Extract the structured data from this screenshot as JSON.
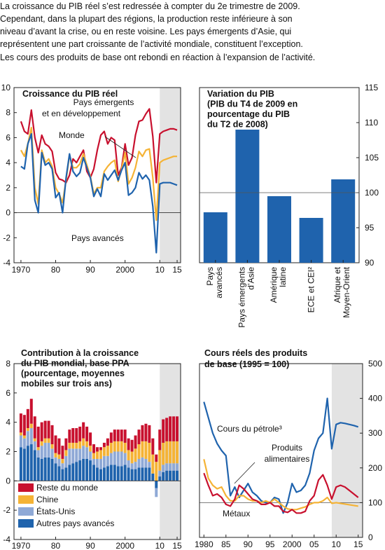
{
  "intro": [
    "La croissance du PIB réel s’est redressée à compter du 2e trimestre de 2009.",
    "Cependant, dans la plupart des régions, la production reste inférieure à son",
    "niveau d’avant la crise, ou en reste voisine. Les pays émergents d’Asie, qui",
    "représentent une part croissante de l’activité mondiale, constituent l’exception.",
    "Les cours des produits de base ont rebondi en réaction à l’expansion de l’activité."
  ],
  "colors": {
    "red": "#c8102e",
    "yellow": "#f5b335",
    "lightblue": "#8fa9d6",
    "blue": "#1f63ad",
    "shade": "#e3e3e3"
  },
  "chart_data": [
    {
      "type": "line",
      "title": "Croissance du PIB réel",
      "ylim": [
        -4,
        10
      ],
      "yticks": [
        "-4",
        "-2",
        "0",
        "2",
        "4",
        "6",
        "8",
        "10"
      ],
      "xlim": [
        1968,
        2016
      ],
      "xtick_labels": [
        "1970",
        "80",
        "90",
        "2000",
        "10",
        "15"
      ],
      "xtick_values": [
        1970,
        1980,
        1990,
        2000,
        2010,
        2015
      ],
      "shaded_from": 2010,
      "annotations": [
        "Pays émergents",
        "et en développement",
        "Monde",
        "Pays avancés"
      ],
      "x": [
        1970,
        1971,
        1972,
        1973,
        1974,
        1975,
        1976,
        1977,
        1978,
        1979,
        1980,
        1981,
        1982,
        1983,
        1984,
        1985,
        1986,
        1987,
        1988,
        1989,
        1990,
        1991,
        1992,
        1993,
        1994,
        1995,
        1996,
        1997,
        1998,
        1999,
        2000,
        2001,
        2002,
        2003,
        2004,
        2005,
        2006,
        2007,
        2008,
        2009,
        2010,
        2011,
        2012,
        2013,
        2014,
        2015
      ],
      "series": [
        {
          "name": "Pays émergents et en développement",
          "color": "red",
          "values": [
            7.3,
            6.5,
            6.3,
            8.2,
            6.0,
            4.8,
            6.2,
            5.5,
            5.3,
            4.9,
            3.2,
            2.7,
            2.6,
            2.4,
            3.0,
            4.3,
            4.0,
            4.5,
            5.0,
            3.3,
            2.8,
            3.5,
            5.0,
            6.2,
            6.5,
            5.5,
            6.0,
            5.8,
            3.0,
            3.6,
            5.5,
            3.8,
            4.4,
            6.2,
            7.3,
            7.4,
            7.9,
            8.3,
            6.1,
            2.4,
            6.3,
            6.5,
            6.6,
            6.7,
            6.7,
            6.6
          ]
        },
        {
          "name": "Monde",
          "color": "yellow",
          "values": [
            5.0,
            4.5,
            5.5,
            6.8,
            2.0,
            0.7,
            5.0,
            4.0,
            4.3,
            3.7,
            2.0,
            1.5,
            0.8,
            2.6,
            4.6,
            3.6,
            3.6,
            3.9,
            4.7,
            3.8,
            2.9,
            1.5,
            2.0,
            2.0,
            3.3,
            3.7,
            4.0,
            4.2,
            2.5,
            3.5,
            4.8,
            2.3,
            2.8,
            3.6,
            4.9,
            4.5,
            5.0,
            5.1,
            2.8,
            -0.6,
            4.0,
            4.2,
            4.3,
            4.4,
            4.5,
            4.5
          ]
        },
        {
          "name": "Pays avancés",
          "color": "blue",
          "values": [
            3.7,
            3.5,
            5.5,
            6.3,
            1.0,
            0.0,
            4.8,
            3.8,
            4.0,
            3.5,
            1.2,
            1.6,
            0.0,
            2.8,
            4.7,
            3.3,
            2.9,
            3.2,
            4.4,
            3.6,
            2.8,
            1.3,
            1.9,
            1.3,
            3.1,
            2.6,
            3.0,
            3.4,
            2.6,
            3.4,
            4.0,
            1.4,
            1.6,
            2.0,
            3.2,
            2.7,
            3.0,
            2.6,
            0.5,
            -3.2,
            2.3,
            2.4,
            2.4,
            2.4,
            2.3,
            2.2
          ]
        }
      ]
    },
    {
      "type": "bar",
      "title_lines": [
        "Variation du PIB",
        "(PIB du T4 de 2009 en",
        "pourcentage du PIB",
        "du T2 de 2008)"
      ],
      "ylim": [
        90,
        115
      ],
      "yticks": [
        "90",
        "95",
        "100",
        "105",
        "110",
        "115"
      ],
      "baseline": 100,
      "categories": [
        [
          "Pays",
          "avancés"
        ],
        [
          "Pays émergents",
          "d’Asie"
        ],
        [
          "Amérique",
          "latine"
        ],
        [
          "ECE et CEI²"
        ],
        [
          "Afrique et",
          "Moyen-Orient"
        ]
      ],
      "values": [
        97.2,
        109.0,
        99.5,
        96.4,
        101.9
      ],
      "color": "blue"
    },
    {
      "type": "bar",
      "stacked": true,
      "title_lines": [
        "Contribution à la croissance",
        "du PIB mondial, base PPA",
        "(pourcentage, moyennes",
        "mobiles sur trois ans)"
      ],
      "ylim": [
        -4,
        8
      ],
      "yticks": [
        "-4",
        "-2",
        "0",
        "2",
        "4",
        "6",
        "8"
      ],
      "xlim": [
        1968,
        2016
      ],
      "xtick_labels": [
        "1970",
        "80",
        "90",
        "2000",
        "10",
        "15"
      ],
      "xtick_values": [
        1970,
        1980,
        1990,
        2000,
        2010,
        2015
      ],
      "shaded_from": 2010,
      "x": [
        1970,
        1971,
        1972,
        1973,
        1974,
        1975,
        1976,
        1977,
        1978,
        1979,
        1980,
        1981,
        1982,
        1983,
        1984,
        1985,
        1986,
        1987,
        1988,
        1989,
        1990,
        1991,
        1992,
        1993,
        1994,
        1995,
        1996,
        1997,
        1998,
        1999,
        2000,
        2001,
        2002,
        2003,
        2004,
        2005,
        2006,
        2007,
        2008,
        2009,
        2010,
        2011,
        2012,
        2013,
        2014,
        2015
      ],
      "legend_labels": [
        "Reste du monde",
        "Chine",
        "États-Unis",
        "Autres pays avancés"
      ],
      "series": [
        {
          "name": "Autres pays avancés",
          "color": "blue",
          "values": [
            2.3,
            2.2,
            2.4,
            2.5,
            2.1,
            1.6,
            1.5,
            1.6,
            1.6,
            1.5,
            1.2,
            1.0,
            0.8,
            0.9,
            1.1,
            1.2,
            1.3,
            1.4,
            1.5,
            1.5,
            1.4,
            1.1,
            0.9,
            0.8,
            0.9,
            1.0,
            1.1,
            1.1,
            1.0,
            1.0,
            1.1,
            0.9,
            0.8,
            0.8,
            0.9,
            0.9,
            0.9,
            0.9,
            0.5,
            -0.5,
            0.3,
            0.6,
            0.7,
            0.7,
            0.7,
            0.7
          ]
        },
        {
          "name": "États-Unis",
          "color": "lightblue",
          "values": [
            0.8,
            0.7,
            1.0,
            1.1,
            0.6,
            0.5,
            0.9,
            1.0,
            1.0,
            0.7,
            0.4,
            0.5,
            0.4,
            0.8,
            1.1,
            1.0,
            0.9,
            0.8,
            0.9,
            0.8,
            0.6,
            0.4,
            0.6,
            0.7,
            0.8,
            0.7,
            0.8,
            0.9,
            1.0,
            1.0,
            0.8,
            0.5,
            0.4,
            0.5,
            0.6,
            0.7,
            0.6,
            0.4,
            0.0,
            -0.6,
            0.4,
            0.5,
            0.5,
            0.5,
            0.5,
            0.5
          ]
        },
        {
          "name": "Chine",
          "color": "yellow",
          "values": [
            0.2,
            0.2,
            0.2,
            0.3,
            0.2,
            0.2,
            0.3,
            0.3,
            0.3,
            0.3,
            0.3,
            0.3,
            0.3,
            0.4,
            0.4,
            0.4,
            0.4,
            0.5,
            0.5,
            0.4,
            0.4,
            0.4,
            0.5,
            0.6,
            0.6,
            0.7,
            0.7,
            0.7,
            0.7,
            0.7,
            0.7,
            0.7,
            0.8,
            0.9,
            1.0,
            1.1,
            1.2,
            1.3,
            1.3,
            1.3,
            1.4,
            1.5,
            1.5,
            1.5,
            1.5,
            1.5
          ]
        },
        {
          "name": "Reste du monde",
          "color": "red",
          "values": [
            1.3,
            1.4,
            1.3,
            1.7,
            1.5,
            1.4,
            1.3,
            1.2,
            1.2,
            1.3,
            1.2,
            1.1,
            0.9,
            0.8,
            0.9,
            1.0,
            1.0,
            1.0,
            1.1,
            1.0,
            0.9,
            0.6,
            0.3,
            0.2,
            0.3,
            0.5,
            0.7,
            0.8,
            0.8,
            0.8,
            0.9,
            0.8,
            0.8,
            0.9,
            1.0,
            1.1,
            1.2,
            1.2,
            1.1,
            0.5,
            1.4,
            1.6,
            1.6,
            1.7,
            1.7,
            1.7
          ]
        }
      ]
    },
    {
      "type": "line",
      "title_lines": [
        "Cours réels des produits",
        "de base (1995 = 100)"
      ],
      "ylim": [
        0,
        500
      ],
      "yticks": [
        "0",
        "100",
        "200",
        "300",
        "400",
        "500"
      ],
      "xlim": [
        1979,
        2016
      ],
      "xtick_labels": [
        "1980",
        "85",
        "90",
        "95",
        "2000",
        "05",
        "10",
        "15"
      ],
      "xtick_values": [
        1980,
        1985,
        1990,
        1995,
        2000,
        2005,
        2010,
        2015
      ],
      "shaded_from": 2009,
      "annotations": [
        "Cours du pétrole³",
        "Produits",
        "alimentaires",
        "Métaux"
      ],
      "x": [
        1980,
        1981,
        1982,
        1983,
        1984,
        1985,
        1986,
        1987,
        1988,
        1989,
        1990,
        1991,
        1992,
        1993,
        1994,
        1995,
        1996,
        1997,
        1998,
        1999,
        2000,
        2001,
        2002,
        2003,
        2004,
        2005,
        2006,
        2007,
        2008,
        2009,
        2010,
        2011,
        2012,
        2013,
        2014,
        2015
      ],
      "series": [
        {
          "name": "Cours du pétrole³",
          "color": "blue",
          "values": [
            390,
            345,
            300,
            270,
            250,
            235,
            120,
            145,
            115,
            135,
            155,
            130,
            120,
            105,
            100,
            100,
            115,
            110,
            70,
            100,
            155,
            130,
            135,
            150,
            185,
            250,
            285,
            300,
            400,
            255,
            325,
            330,
            328,
            325,
            322,
            318
          ]
        },
        {
          "name": "Produits alimentaires",
          "color": "yellow",
          "values": [
            225,
            170,
            150,
            140,
            145,
            120,
            105,
            105,
            120,
            120,
            110,
            105,
            105,
            100,
            105,
            100,
            110,
            100,
            90,
            82,
            80,
            80,
            84,
            88,
            95,
            100,
            100,
            105,
            115,
            98,
            100,
            98,
            96,
            94,
            92,
            90
          ]
        },
        {
          "name": "Métaux",
          "color": "red",
          "values": [
            185,
            150,
            120,
            125,
            115,
            95,
            90,
            110,
            150,
            140,
            125,
            110,
            105,
            95,
            95,
            100,
            90,
            90,
            75,
            72,
            80,
            70,
            70,
            75,
            105,
            120,
            165,
            180,
            150,
            110,
            145,
            150,
            145,
            135,
            125,
            115
          ]
        }
      ]
    }
  ]
}
